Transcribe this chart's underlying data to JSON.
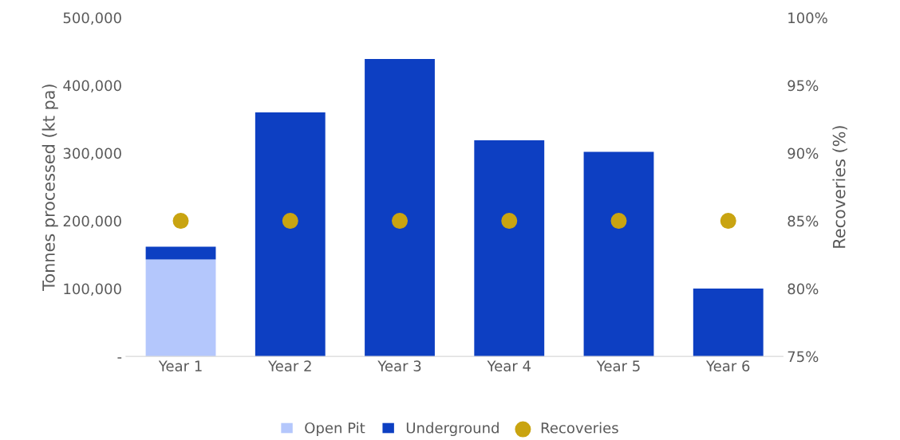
{
  "chart_data": {
    "type": "bar",
    "stacked": true,
    "categories": [
      "Year 1",
      "Year 2",
      "Year 3",
      "Year 4",
      "Year 5",
      "Year 6"
    ],
    "series": [
      {
        "name": "Open Pit",
        "color": "#b4c7fc",
        "values": [
          143000,
          null,
          null,
          null,
          null,
          null
        ]
      },
      {
        "name": "Underground",
        "color": "#0d3fc2",
        "values": [
          19000,
          360000,
          439000,
          319000,
          302000,
          100000
        ]
      },
      {
        "name": "Recoveries",
        "type": "scatter",
        "axis": "y2",
        "color": "#c9a411",
        "marker": "circle",
        "x": [
          "Year 1",
          "Year 2",
          "Year 3",
          "Year 4",
          "Year 5",
          "Year 6"
        ],
        "values": [
          85,
          85,
          85,
          85,
          85,
          85
        ]
      }
    ],
    "ylabel": "Tonnes processed (kt pa)",
    "y2label": "Recoveries (%)",
    "ylim": [
      0,
      500000
    ],
    "yticks": [
      {
        "value": 0,
        "label": "-"
      },
      {
        "value": 100000,
        "label": "100,000"
      },
      {
        "value": 200000,
        "label": "200,000"
      },
      {
        "value": 300000,
        "label": "300,000"
      },
      {
        "value": 400000,
        "label": "400,000"
      },
      {
        "value": 500000,
        "label": "500,000"
      }
    ],
    "y2lim": [
      75,
      100
    ],
    "y2ticks": [
      {
        "value": 75,
        "label": "75%"
      },
      {
        "value": 80,
        "label": "80%"
      },
      {
        "value": 85,
        "label": "85%"
      },
      {
        "value": 90,
        "label": "90%"
      },
      {
        "value": 95,
        "label": "95%"
      },
      {
        "value": 100,
        "label": "100%"
      }
    ],
    "grid": false,
    "legend": "bottom"
  }
}
